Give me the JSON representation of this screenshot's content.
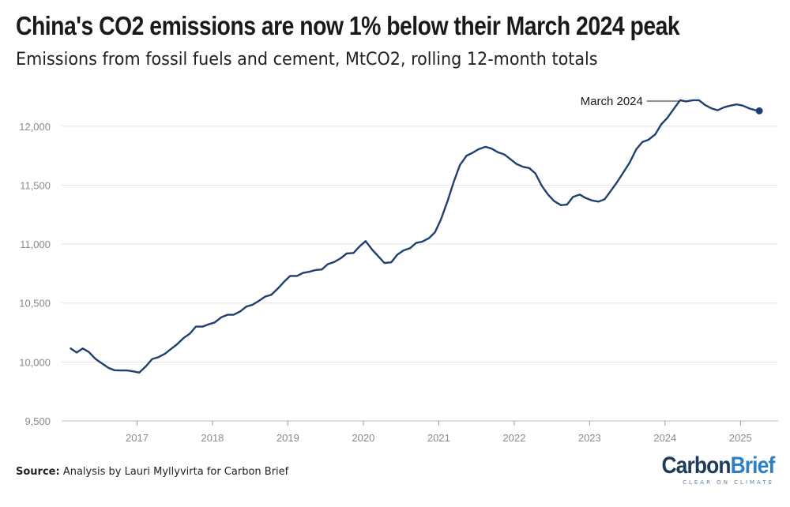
{
  "chart_data": {
    "type": "line",
    "title": "China's CO2 emissions are now 1% below their March 2024 peak",
    "subtitle": "Emissions from fossil fuels and cement, MtCO2, rolling 12-month totals",
    "xlabel": "",
    "ylabel": "",
    "xlim": [
      2016.0,
      2025.5
    ],
    "ylim": [
      9500,
      12300
    ],
    "x_ticks": [
      2017,
      2018,
      2019,
      2020,
      2021,
      2022,
      2023,
      2024,
      2025
    ],
    "y_ticks": [
      9500,
      10000,
      10500,
      11000,
      11500,
      12000
    ],
    "y_tick_labels": [
      "9,500",
      "10,000",
      "10,500",
      "11,000",
      "11,500",
      "12,000"
    ],
    "grid": "horizontal",
    "legend": "none",
    "line_color": "#1f3f6e",
    "series": [
      {
        "x": [
          2016.12,
          2016.2,
          2016.28,
          2016.36,
          2016.45,
          2016.53,
          2016.62,
          2016.7,
          2016.78,
          2016.87,
          2016.95,
          2017.03,
          2017.12,
          2017.2,
          2017.28,
          2017.37,
          2017.45,
          2017.53,
          2017.62,
          2017.7,
          2017.78,
          2017.87,
          2017.95,
          2018.03,
          2018.12,
          2018.2,
          2018.28,
          2018.37,
          2018.45,
          2018.53,
          2018.62,
          2018.7,
          2018.78,
          2018.87,
          2018.95,
          2019.03,
          2019.12,
          2019.2,
          2019.28,
          2019.37,
          2019.45,
          2019.53,
          2019.62,
          2019.7,
          2019.78,
          2019.87,
          2019.95,
          2020.03,
          2020.12,
          2020.2,
          2020.28,
          2020.37,
          2020.45,
          2020.53,
          2020.62,
          2020.7,
          2020.78,
          2020.87,
          2020.95,
          2021.03,
          2021.12,
          2021.2,
          2021.28,
          2021.37,
          2021.45,
          2021.53,
          2021.62,
          2021.7,
          2021.78,
          2021.87,
          2021.95,
          2022.03,
          2022.12,
          2022.2,
          2022.28,
          2022.37,
          2022.45,
          2022.53,
          2022.62,
          2022.7,
          2022.78,
          2022.87,
          2022.95,
          2023.03,
          2023.12,
          2023.2,
          2023.28,
          2023.37,
          2023.45,
          2023.53,
          2023.62,
          2023.7,
          2023.78,
          2023.87,
          2023.95,
          2024.03,
          2024.12,
          2024.2,
          2024.28,
          2024.37,
          2024.45,
          2024.53,
          2024.62,
          2024.7,
          2024.78,
          2024.87,
          2024.95,
          2025.03,
          2025.12,
          2025.2,
          2025.25
        ],
        "y": [
          10115,
          10080,
          10115,
          10085,
          10025,
          9990,
          9950,
          9930,
          9928,
          9928,
          9920,
          9910,
          9965,
          10025,
          10040,
          10070,
          10110,
          10150,
          10205,
          10240,
          10300,
          10300,
          10320,
          10335,
          10380,
          10400,
          10400,
          10430,
          10470,
          10485,
          10520,
          10555,
          10570,
          10625,
          10680,
          10730,
          10730,
          10755,
          10765,
          10780,
          10785,
          10830,
          10850,
          10880,
          10920,
          10925,
          10980,
          11025,
          10950,
          10895,
          10840,
          10845,
          10910,
          10945,
          10965,
          11010,
          11020,
          11050,
          11100,
          11210,
          11370,
          11530,
          11670,
          11750,
          11775,
          11805,
          11825,
          11810,
          11780,
          11760,
          11720,
          11680,
          11655,
          11645,
          11600,
          11490,
          11420,
          11365,
          11330,
          11335,
          11400,
          11420,
          11390,
          11370,
          11360,
          11380,
          11450,
          11530,
          11610,
          11690,
          11805,
          11865,
          11885,
          11930,
          12015,
          12070,
          12150,
          12220,
          12210,
          12220,
          12220,
          12180,
          12150,
          12135,
          12160,
          12175,
          12185,
          12175,
          12150,
          12135,
          12130
        ]
      }
    ],
    "annotations": [
      {
        "text": "March 2024",
        "x": 2024.2,
        "y": 12220
      }
    ]
  },
  "source_label": "Source:",
  "source_text": " Analysis by Lauri Myllyvirta for Carbon Brief",
  "logo": {
    "part1": "Carbon",
    "part2": "Brief",
    "tagline": "CLEAR ON CLIMATE"
  }
}
